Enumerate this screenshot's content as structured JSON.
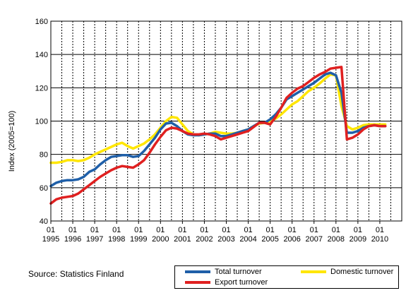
{
  "chart_data": {
    "type": "line",
    "ylabel": "Index (2005=100)",
    "ylim": [
      40,
      160
    ],
    "yticks": [
      40,
      60,
      80,
      100,
      120,
      140,
      160
    ],
    "xlim": [
      1995.0,
      2011.0
    ],
    "xticks": [
      {
        "top": "01",
        "bottom": "1995"
      },
      {
        "top": "01",
        "bottom": "1996"
      },
      {
        "top": "01",
        "bottom": "1997"
      },
      {
        "top": "01",
        "bottom": "1998"
      },
      {
        "top": "01",
        "bottom": "1999"
      },
      {
        "top": "01",
        "bottom": "2000"
      },
      {
        "top": "01",
        "bottom": "2001"
      },
      {
        "top": "01",
        "bottom": "2002"
      },
      {
        "top": "01",
        "bottom": "2003"
      },
      {
        "top": "01",
        "bottom": "2004"
      },
      {
        "top": "01",
        "bottom": "2005"
      },
      {
        "top": "01",
        "bottom": "2006"
      },
      {
        "top": "01",
        "bottom": "2007"
      },
      {
        "top": "01",
        "bottom": "2008"
      },
      {
        "top": "01",
        "bottom": "2009"
      },
      {
        "top": "01",
        "bottom": "2010"
      }
    ],
    "grid": true,
    "legend_position": "bottom-right",
    "x": [
      1995.0,
      1995.25,
      1995.5,
      1995.75,
      1996.0,
      1996.25,
      1996.5,
      1996.75,
      1997.0,
      1997.25,
      1997.5,
      1997.75,
      1998.0,
      1998.25,
      1998.5,
      1998.75,
      1999.0,
      1999.25,
      1999.5,
      1999.75,
      2000.0,
      2000.25,
      2000.5,
      2000.75,
      2001.0,
      2001.25,
      2001.5,
      2001.75,
      2002.0,
      2002.25,
      2002.5,
      2002.75,
      2003.0,
      2003.25,
      2003.5,
      2003.75,
      2004.0,
      2004.25,
      2004.5,
      2004.75,
      2005.0,
      2005.25,
      2005.5,
      2005.75,
      2006.0,
      2006.25,
      2006.5,
      2006.75,
      2007.0,
      2007.25,
      2007.5,
      2007.75,
      2008.0,
      2008.25,
      2008.5,
      2008.75,
      2009.0,
      2009.25,
      2009.5,
      2009.75,
      2010.0,
      2010.25
    ],
    "series": [
      {
        "name": "Total turnover",
        "color": "#1f5fa8",
        "values": [
          61,
          63,
          64,
          64.5,
          64.5,
          65,
          66.5,
          69.5,
          71,
          74,
          76.5,
          78.5,
          79,
          79.5,
          79.5,
          78.5,
          79,
          82,
          86,
          90,
          95,
          98.5,
          99,
          97,
          94,
          92,
          91.5,
          91.5,
          92,
          92.5,
          92.5,
          91,
          91,
          92,
          93,
          94,
          95,
          97,
          99,
          99,
          101,
          104,
          108,
          113,
          115,
          117,
          119,
          121,
          123,
          125.5,
          128,
          129,
          127.5,
          117,
          93,
          93,
          94,
          96,
          97,
          97.5,
          97,
          97
        ]
      },
      {
        "name": "Domestic turnover",
        "color": "#ffe600",
        "values": [
          75,
          75,
          75.5,
          76.5,
          76.5,
          76,
          76.5,
          78,
          80,
          81.5,
          83,
          84.5,
          86,
          87,
          85,
          83.5,
          85,
          86.5,
          89,
          92,
          96,
          100,
          102.5,
          102,
          98,
          94,
          92,
          91.5,
          92,
          92.5,
          93.5,
          93,
          92.5,
          92.5,
          93,
          94,
          95,
          97,
          98.5,
          99,
          100,
          101.5,
          104,
          107,
          110,
          112,
          115,
          118,
          120,
          122.5,
          125.5,
          128,
          127.5,
          109,
          97,
          95,
          96,
          97.5,
          98,
          98,
          98,
          98
        ]
      },
      {
        "name": "Export turnover",
        "color": "#e02020",
        "values": [
          50.5,
          53,
          54,
          54.5,
          55,
          56.5,
          59,
          61.5,
          64,
          66.5,
          68.5,
          70.5,
          72,
          73,
          72.5,
          72,
          74,
          76.5,
          81,
          86,
          90.5,
          94.5,
          96,
          95.5,
          94,
          92.5,
          92,
          92,
          92.5,
          92,
          91,
          89,
          90,
          91,
          92,
          93,
          94,
          96.5,
          99,
          99,
          98,
          102.5,
          108,
          114,
          117,
          119.5,
          121,
          123.5,
          126,
          128,
          129.5,
          131.5,
          132,
          132.5,
          89,
          90,
          92,
          95,
          97,
          97.5,
          97,
          97
        ]
      }
    ]
  },
  "source": "Source: Statistics Finland",
  "legend": {
    "total": "Total turnover",
    "domestic": "Domestic turnover",
    "export": "Export turnover"
  }
}
